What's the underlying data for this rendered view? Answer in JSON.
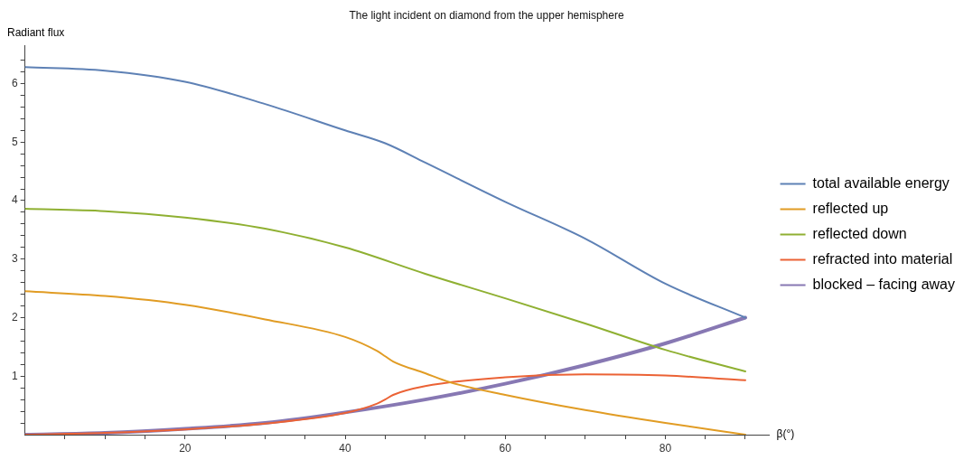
{
  "chart_data": {
    "type": "line",
    "title": "The light incident on diamond from the upper hemisphere",
    "xlabel": "β(°)",
    "ylabel": "Radiant flux",
    "xlim": [
      0,
      93
    ],
    "ylim": [
      0,
      6.65
    ],
    "xticks": [
      {
        "value": 5,
        "label": null
      },
      {
        "value": 10,
        "label": null
      },
      {
        "value": 15,
        "label": null
      },
      20,
      {
        "value": 25,
        "label": null
      },
      {
        "value": 30,
        "label": null
      },
      {
        "value": 35,
        "label": null
      },
      40,
      {
        "value": 45,
        "label": null
      },
      {
        "value": 50,
        "label": null
      },
      {
        "value": 55,
        "label": null
      },
      60,
      {
        "value": 65,
        "label": null
      },
      {
        "value": 70,
        "label": null
      },
      {
        "value": 75,
        "label": null
      },
      80,
      {
        "value": 85,
        "label": null
      },
      {
        "value": 90,
        "label": null
      }
    ],
    "yticks": [
      {
        "value": 0.2,
        "label": null
      },
      {
        "value": 0.4,
        "label": null
      },
      {
        "value": 0.6,
        "label": null
      },
      {
        "value": 0.8,
        "label": null
      },
      1,
      {
        "value": 1.2,
        "label": null
      },
      {
        "value": 1.4,
        "label": null
      },
      {
        "value": 1.6,
        "label": null
      },
      {
        "value": 1.8,
        "label": null
      },
      2,
      {
        "value": 2.2,
        "label": null
      },
      {
        "value": 2.4,
        "label": null
      },
      {
        "value": 2.6,
        "label": null
      },
      {
        "value": 2.8,
        "label": null
      },
      3,
      {
        "value": 3.2,
        "label": null
      },
      {
        "value": 3.4,
        "label": null
      },
      {
        "value": 3.6,
        "label": null
      },
      {
        "value": 3.8,
        "label": null
      },
      4,
      {
        "value": 4.2,
        "label": null
      },
      {
        "value": 4.4,
        "label": null
      },
      {
        "value": 4.6,
        "label": null
      },
      {
        "value": 4.8,
        "label": null
      },
      5,
      {
        "value": 5.2,
        "label": null
      },
      {
        "value": 5.4,
        "label": null
      },
      {
        "value": 5.6,
        "label": null
      },
      {
        "value": 5.8,
        "label": null
      },
      6,
      {
        "value": 6.2,
        "label": null
      },
      {
        "value": 6.4,
        "label": null
      }
    ],
    "grid": false,
    "legend": "right",
    "marker": "none",
    "line_style": "solid",
    "series": [
      {
        "name": "total available energy",
        "color": "#5e81b5",
        "x": [
          0,
          10,
          20,
          30,
          40,
          45,
          50,
          60,
          70,
          80,
          90
        ],
        "values": [
          6.28,
          6.22,
          6.03,
          5.65,
          5.2,
          4.98,
          4.65,
          3.98,
          3.35,
          2.58,
          2.0
        ]
      },
      {
        "name": "reflected up",
        "color": "#e19c24",
        "x": [
          0,
          10,
          20,
          30,
          40,
          44,
          45,
          46,
          50,
          53,
          60,
          70,
          80,
          90
        ],
        "values": [
          2.45,
          2.37,
          2.22,
          1.97,
          1.67,
          1.43,
          1.34,
          1.25,
          1.05,
          0.9,
          0.68,
          0.42,
          0.2,
          0
        ]
      },
      {
        "name": "reflected down",
        "color": "#8fb032",
        "x": [
          0,
          10,
          20,
          30,
          40,
          50,
          60,
          70,
          80,
          90
        ],
        "values": [
          3.86,
          3.82,
          3.71,
          3.52,
          3.2,
          2.75,
          2.33,
          1.9,
          1.45,
          1.08
        ]
      },
      {
        "name": "refracted into material",
        "color": "#eb6235",
        "x": [
          0,
          10,
          20,
          30,
          40,
          44,
          45,
          46,
          50,
          60,
          70,
          80,
          90
        ],
        "values": [
          0,
          0.03,
          0.09,
          0.19,
          0.37,
          0.53,
          0.6,
          0.68,
          0.83,
          0.98,
          1.03,
          1.01,
          0.93
        ]
      },
      {
        "name": "blocked – facing away",
        "color": "#8778b3",
        "x": [
          0,
          10,
          20,
          30,
          40,
          50,
          60,
          70,
          80,
          90
        ],
        "values": [
          0,
          0.03,
          0.1,
          0.2,
          0.38,
          0.6,
          0.87,
          1.19,
          1.56,
          2.0
        ]
      }
    ]
  }
}
